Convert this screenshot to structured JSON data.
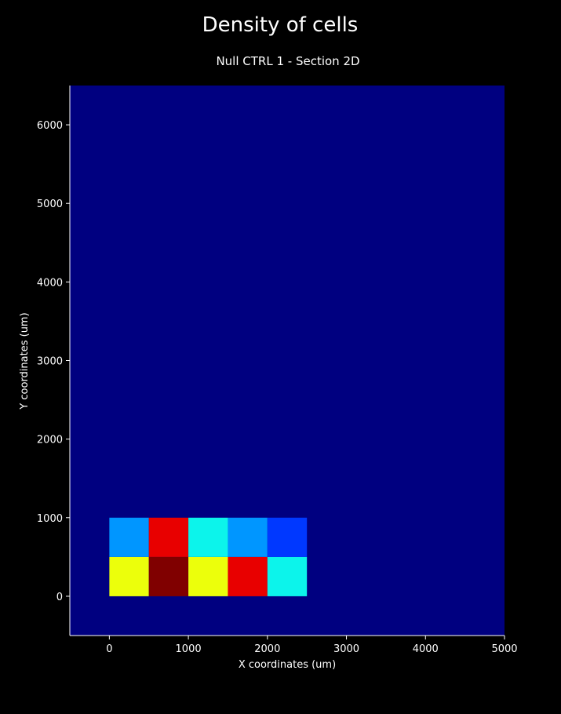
{
  "colors": {
    "background": "#000000",
    "plot_background": "#000080",
    "text": "#ffffff"
  },
  "chart_data": {
    "type": "heatmap",
    "title": "Density of cells",
    "subtitle": "Null CTRL 1 - Section 2D",
    "xlabel": "X coordinates (um)",
    "ylabel": "Y coordinates (um)",
    "xlim": [
      -500,
      5000
    ],
    "ylim": [
      -500,
      6500
    ],
    "xticks": [
      0,
      1000,
      2000,
      3000,
      4000,
      5000
    ],
    "yticks": [
      0,
      1000,
      2000,
      3000,
      4000,
      5000,
      6000
    ],
    "grid": false,
    "colormap": "jet",
    "cell_size": 500,
    "cells": [
      {
        "x0": 0,
        "y0": 0,
        "color": "#ecff0b"
      },
      {
        "x0": 500,
        "y0": 0,
        "color": "#800000"
      },
      {
        "x0": 1000,
        "y0": 0,
        "color": "#ecff0b"
      },
      {
        "x0": 1500,
        "y0": 0,
        "color": "#e80000"
      },
      {
        "x0": 2000,
        "y0": 0,
        "color": "#0cf4eb"
      },
      {
        "x0": 0,
        "y0": 500,
        "color": "#0096ff"
      },
      {
        "x0": 500,
        "y0": 500,
        "color": "#e80000"
      },
      {
        "x0": 1000,
        "y0": 500,
        "color": "#0cf4eb"
      },
      {
        "x0": 1500,
        "y0": 500,
        "color": "#0096ff"
      },
      {
        "x0": 2000,
        "y0": 500,
        "color": "#0038ff"
      }
    ]
  }
}
